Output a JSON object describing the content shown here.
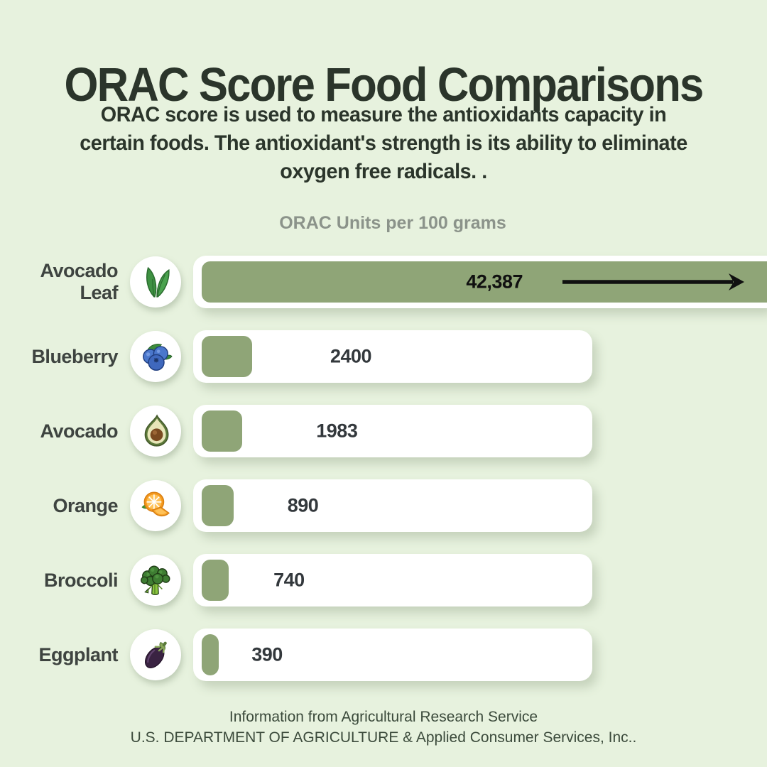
{
  "page": {
    "title": "ORAC Score Food Comparisons",
    "subtitle_lines": [
      "ORAC score is used to measure the antioxidants capacity in",
      "certain foods. The antioxidant's strength is its ability to eliminate",
      "oxygen free radicals. ."
    ],
    "footer_line1": "Information from Agricultural Research Service",
    "footer_line2": "U.S. DEPARTMENT OF AGRICULTURE & Applied Consumer Services, Inc.."
  },
  "chart_data": {
    "type": "bar",
    "orientation": "horizontal",
    "title": "ORAC Units per 100 grams",
    "xlabel": "ORAC Units per 100 grams",
    "categories": [
      "Avocado Leaf",
      "Blueberry",
      "Avocado",
      "Orange",
      "Broccoli",
      "Eggplant"
    ],
    "values": [
      42387,
      2400,
      1983,
      890,
      740,
      390
    ],
    "legend": false,
    "grid": false,
    "rows": [
      {
        "label": "Avocado Leaf",
        "value": 42387,
        "value_display": "42,387",
        "icon": "avocado-leaf-icon",
        "bar_pct": 100,
        "full_width": true,
        "arrow": true,
        "value_pos_pct": 52.5
      },
      {
        "label": "Blueberry",
        "value": 2400,
        "value_display": "2400",
        "icon": "blueberry-icon",
        "bar_pct": 12.7,
        "full_width": false,
        "arrow": false,
        "value_pos_pct": 39.5
      },
      {
        "label": "Avocado",
        "value": 1983,
        "value_display": "1983",
        "icon": "avocado-icon",
        "bar_pct": 10.2,
        "full_width": false,
        "arrow": false,
        "value_pos_pct": 36.0
      },
      {
        "label": "Orange",
        "value": 890,
        "value_display": "890",
        "icon": "orange-icon",
        "bar_pct": 8.0,
        "full_width": false,
        "arrow": false,
        "value_pos_pct": 27.5
      },
      {
        "label": "Broccoli",
        "value": 740,
        "value_display": "740",
        "icon": "broccoli-icon",
        "bar_pct": 6.8,
        "full_width": false,
        "arrow": false,
        "value_pos_pct": 24.0
      },
      {
        "label": "Eggplant",
        "value": 390,
        "value_display": "390",
        "icon": "eggplant-icon",
        "bar_pct": 4.2,
        "full_width": false,
        "arrow": false,
        "value_pos_pct": 18.5
      }
    ],
    "colors": {
      "background": "#e7f2de",
      "bar": "#8fa577",
      "track": "#ffffff",
      "title_text": "#2b352b",
      "label_text": "#3e4440",
      "value_text": "#33383c",
      "chart_title_text": "#8b938a",
      "arrow": "#101010",
      "footer_text": "#3b4a3b"
    }
  }
}
